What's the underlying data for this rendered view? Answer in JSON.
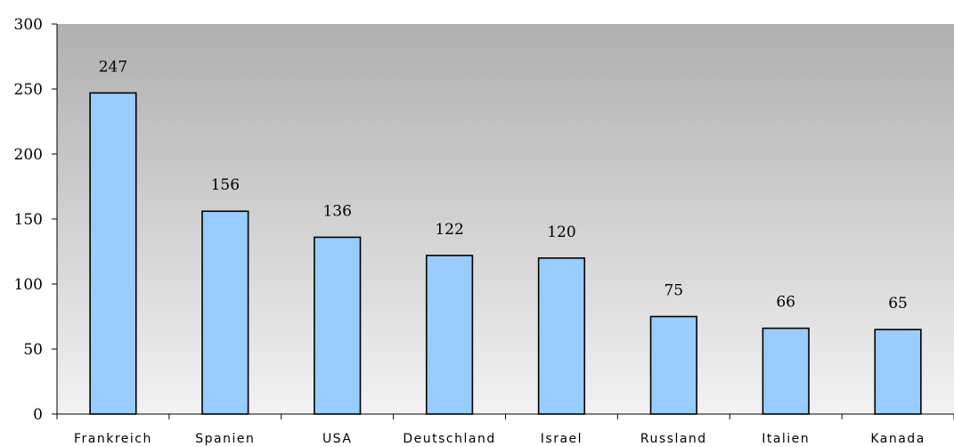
{
  "chart_data": {
    "type": "bar",
    "categories": [
      "Frankreich",
      "Spanien",
      "USA",
      "Deutschland",
      "Israel",
      "Russland",
      "Italien",
      "Kanada"
    ],
    "values": [
      247,
      156,
      136,
      122,
      120,
      75,
      66,
      65
    ],
    "data_labels": [
      "247",
      "156",
      "136",
      "122",
      "120",
      "75",
      "66",
      "65"
    ],
    "y_ticks": [
      "0",
      "50",
      "100",
      "150",
      "200",
      "250",
      "300"
    ],
    "ylim": [
      0,
      300
    ],
    "title": "",
    "xlabel": "",
    "ylabel": "",
    "grid": false,
    "legend": "none",
    "colors": {
      "bar_fill": "#99ccff",
      "bar_stroke": "#000000",
      "plot_bg_top": "#b0b0b0",
      "plot_bg_bottom": "#f2f2f2"
    }
  }
}
